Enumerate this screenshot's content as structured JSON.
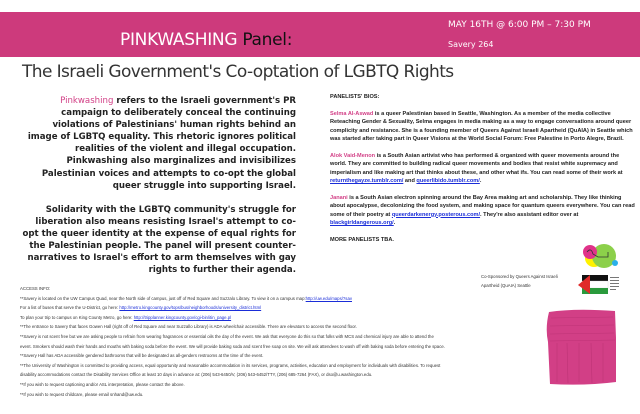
{
  "banner": {
    "title_main": "PINKWASHING",
    "title_panel": "Panel:",
    "date": "MAY 16TH @ 6:00 PM – 7:30 PM",
    "room": "Savery 264",
    "color": "#cd3a7c"
  },
  "title": "The Israeli Government's Co-optation of LGBTQ Rights",
  "intro": {
    "p1_highlight": "Pinkwashing",
    "p1_rest": " refers to the Israeli government's PR campaign to deliberately conceal the continuing violations of Palestinians' human rights behind an image of LGBTQ equality. This rhetoric ignores political realities of the violent and illegal occupation. Pinkwashing also marginalizes and invisibilizes Palestinian voices and attempts to co-opt the global queer struggle into supporting Israel.",
    "p2": "Solidarity with the LGBTQ community's struggle for liberation also means resisting Israel's attempt to co-opt the queer identity at the expense of equal rights for the Palestinian people. The panel will present counter-narratives to Israel's effort to arm themselves with gay rights to further their agenda."
  },
  "bios": {
    "heading": "PANELISTS' BIOS:",
    "selma_name": "Selma Al-Aswad",
    "selma_text": " is a queer Palestinian based in Seattle, Washington. As a member of the media collective Reteaching Gender & Sexuality, Selma engages in media making as a way to engage conversations around queer complicity and resistance. She is a founding member of Queers Against Israeli Apartheid (QuAIA) in Seattle which was started after taking part in Queer Visions at the World Social Forum: Free Palestine in Porto Alegre, Brazil.",
    "alok_name": "Alok Vaid-Menon",
    "alok_text": " is a South Asian artivist who has performed & organized with queer movements around the world. They are committed to building radical queer movements and bodies that resist white supremacy and imperialism and like making art that thinks about these, and other what ifs. You can read some of their work at ",
    "alok_link1": "returnthegayze.tumblr.com/",
    "alok_and": " and ",
    "alok_link2": "queerlibido.tumblr.com/",
    "janani_name": "Janani",
    "janani_text": " is a South Asian electron spinning around the Bay Area making art and scholarship. They like thinking about apocalypse, decolonizing the food system, and making space for quantum queers everywhere. You can read some of their poetry at ",
    "janani_link1": "queerdarkenergy.posterous.com/",
    "janani_mid": ". They're also assistant editor over at ",
    "janani_link2": "blackgirldangerous.org/",
    "more": "MORE PANELISTS TBA."
  },
  "cosponsor": {
    "line1": "Co-Sponsored by Queers Against Israeli",
    "line2": "Apartheid (QuAIA) Seattle"
  },
  "access": {
    "heading": "ACCESS INFO:",
    "l1": "**Savery is located on the UW Campus Quad, near the North side of campus, just off of Red Square and Suzzalo Library. To view it on a campus map:",
    "l1_link": "http://uw.edu/maps/?sav",
    "l2": "For a list of buses that serve the U-District, go here: ",
    "l2_link": "http://metro.kingcounty.gov/tops/bus/neighborhoods/university_district.html",
    "l3": "To plan your trip to campus on King County Metro, go here: ",
    "l3_link": "http://tripplanner.kingcounty.gov/cgi-bin/itin_page.pl",
    "l4": "**The entrance to Savery that faces Gowen Hall (right off of Red Square and near Suzzallo Library) is ADA wheelchair accessible. There are elevators to access the second floor.",
    "l5": "**Savery is not scent free but we are asking people to refrain from wearing fragrances or essential oils the day of the event. We ask that everyone do this so that folks with MCS and chemical injury are able to attend the",
    "l6": "event. Smokers should wash their hands and mouths with baking soda before the event. We will provide baking soda and scent free soap on site. We will ask attendees to wash off with baking soda before entering the space.",
    "l7": "**Savery Hall has ADA accessible gendered bathrooms that will be designated as all-genders restrooms at the time of the event.",
    "l8": "**The University of Washington is committed to providing access, equal opportunity and reasonable accommodation in its services, programs, activities, education and employment for individuals with disabilities. To request",
    "l9": "disability accommodations contact the Disability Services Office at least 10 days in advance at: (206) 543-6450/V, (206) 543-6452/TTY, (206) 685-7264 (FAX), or dso@u.washington.edu.",
    "l10": "**If you wish to request captioning and/or ASL interpretation, please contact the above.",
    "l11": "**If you wish to request childcare, please email snhand@uw.edu."
  }
}
